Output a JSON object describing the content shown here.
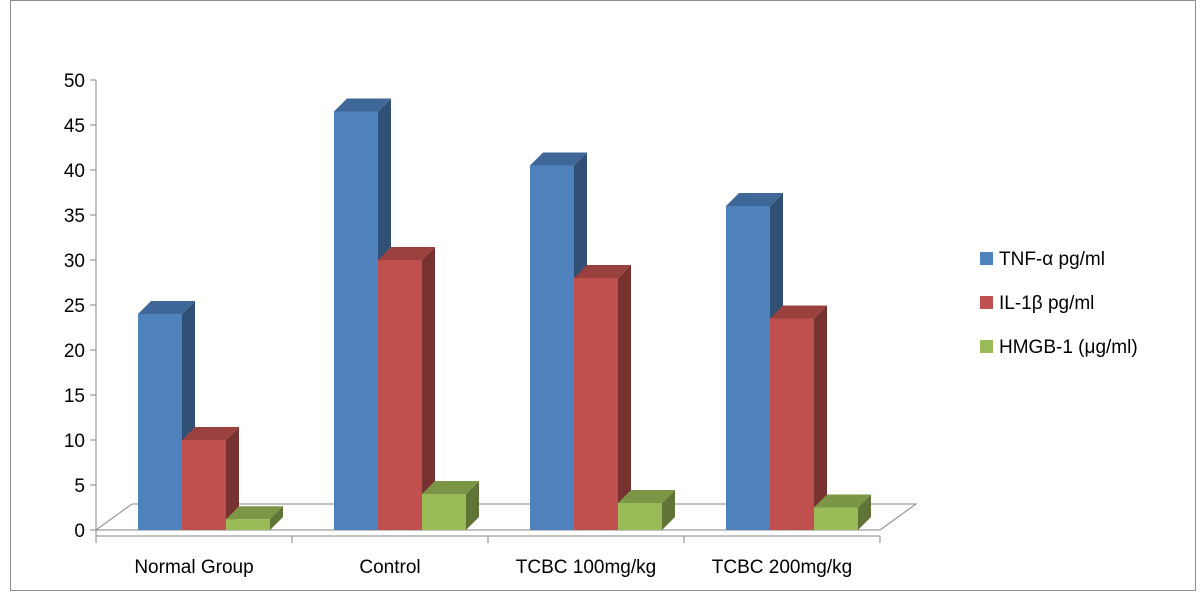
{
  "chart_data": {
    "type": "bar",
    "title": "",
    "xlabel": "",
    "ylabel": "",
    "ylim": [
      0,
      50
    ],
    "yticks": [
      "0",
      "5",
      "10",
      "15",
      "20",
      "25",
      "30",
      "35",
      "40",
      "45",
      "50"
    ],
    "categories": [
      "Normal Group",
      "Control",
      "TCBC 100mg/kg",
      "TCBC 200mg/kg"
    ],
    "series": [
      {
        "name": "TNF-α pg/ml",
        "values": [
          24,
          46.5,
          40.5,
          36
        ],
        "color": "#4F81BD"
      },
      {
        "name": "IL-1β pg/ml",
        "values": [
          10,
          30,
          28,
          23.5
        ],
        "color": "#C0504D"
      },
      {
        "name": "HMGB-1 (μg/ml)",
        "values": [
          1.2,
          4,
          3,
          2.5
        ],
        "color": "#9BBB59"
      }
    ],
    "legend_position": "right",
    "grid": false,
    "style": "3d-column"
  }
}
